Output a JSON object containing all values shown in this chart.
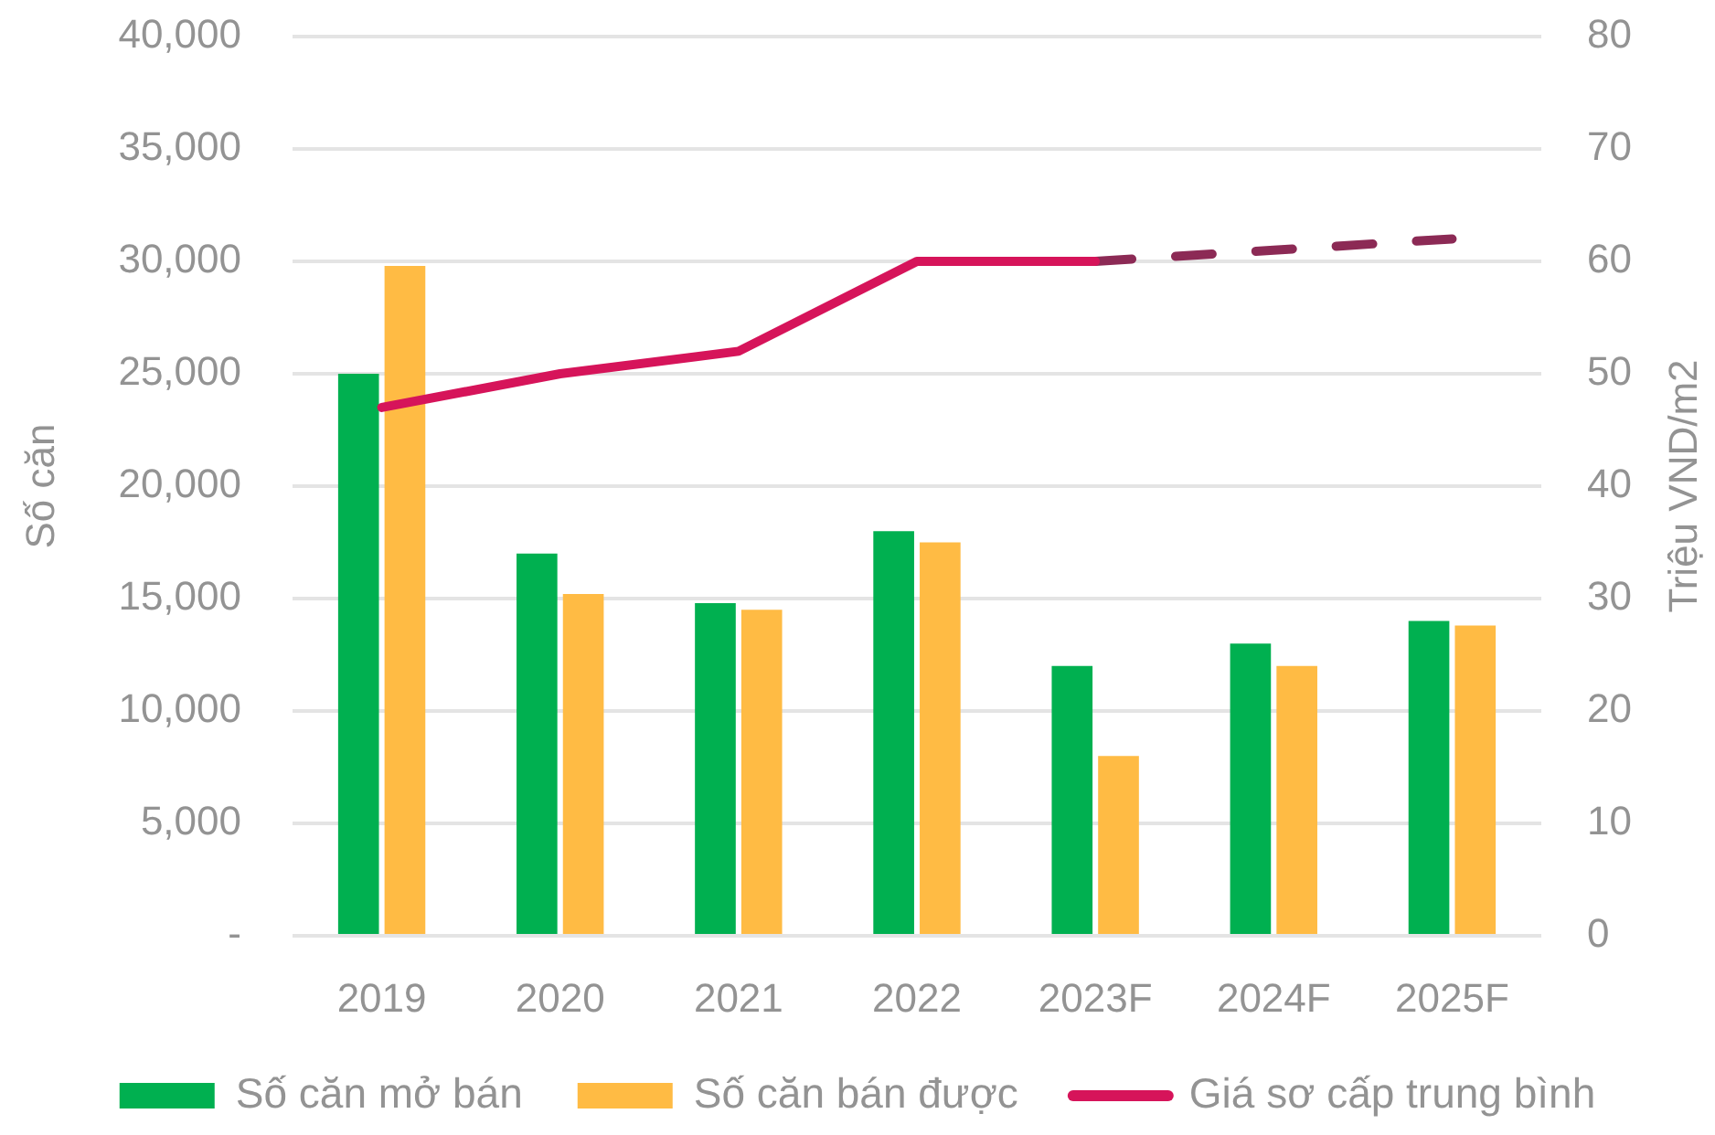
{
  "chart_data": {
    "type": "bar",
    "categories": [
      "2019",
      "2020",
      "2021",
      "2022",
      "2023F",
      "2024F",
      "2025F"
    ],
    "ylabel": "Số căn",
    "y2label": "Triệu VND/m2",
    "series": [
      {
        "name": "Số căn mở bán",
        "color": "#00b050",
        "values": [
          25000,
          17000,
          14800,
          18000,
          12000,
          13000,
          14000
        ]
      },
      {
        "name": "Số căn bán được",
        "color": "#ffbb44",
        "values": [
          29800,
          15200,
          14500,
          17500,
          8000,
          12000,
          13800
        ]
      },
      {
        "name": "Giá sơ cấp trung bình",
        "type": "line",
        "axis": "y2",
        "color": "#d6145a",
        "line_style": "solid",
        "values": [
          47,
          50,
          52,
          60,
          60,
          null,
          null
        ]
      },
      {
        "type": "line",
        "axis": "y2",
        "color": "#8c2a55",
        "line_style": "dashed",
        "values": [
          null,
          null,
          null,
          null,
          60,
          61,
          62
        ]
      }
    ],
    "ylim": [
      0,
      40000
    ],
    "yticks": [
      {
        "value": 0,
        "label": "-"
      },
      {
        "value": 5000,
        "label": "5,000"
      },
      {
        "value": 10000,
        "label": "10,000"
      },
      {
        "value": 15000,
        "label": "15,000"
      },
      {
        "value": 20000,
        "label": "20,000"
      },
      {
        "value": 25000,
        "label": "25,000"
      },
      {
        "value": 30000,
        "label": "30,000"
      },
      {
        "value": 35000,
        "label": "35,000"
      },
      {
        "value": 40000,
        "label": "40,000"
      }
    ],
    "y2lim": [
      0,
      80
    ],
    "y2ticks": [
      0,
      10,
      20,
      30,
      40,
      50,
      60,
      70,
      80
    ],
    "grid": "y",
    "legend": "bottom",
    "marker": "none"
  }
}
